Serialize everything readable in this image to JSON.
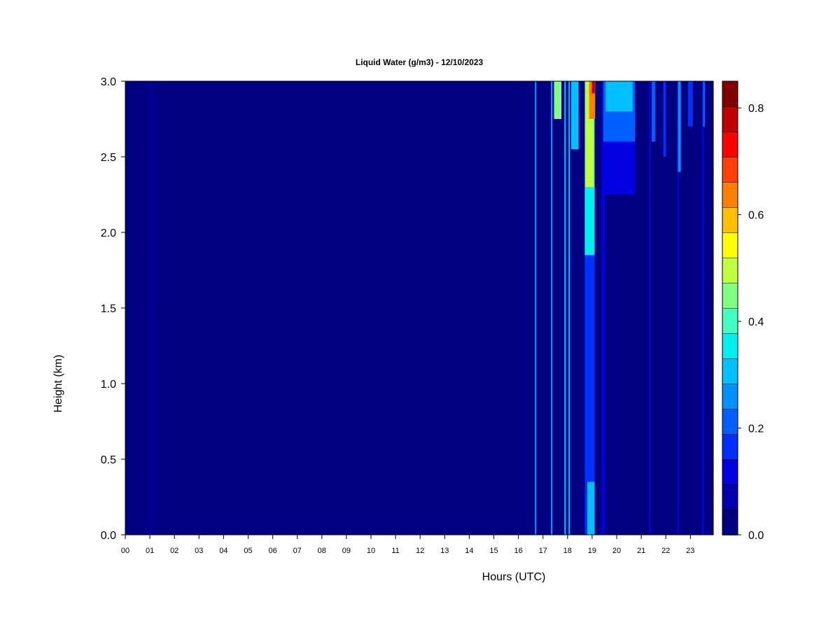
{
  "chart_data": {
    "type": "heatmap",
    "title": "Liquid Water (g/m3) - 12/10/2023",
    "xlabel": "Hours (UTC)",
    "ylabel": "Height (km)",
    "x_ticks": [
      "00",
      "01",
      "02",
      "03",
      "04",
      "05",
      "06",
      "07",
      "08",
      "09",
      "10",
      "11",
      "12",
      "13",
      "14",
      "15",
      "16",
      "17",
      "18",
      "19",
      "20",
      "21",
      "22",
      "23"
    ],
    "y_ticks": [
      "0.0",
      "0.5",
      "1.0",
      "1.5",
      "2.0",
      "2.5",
      "3.0"
    ],
    "xlim": [
      0,
      23.9
    ],
    "ylim": [
      0,
      3.0
    ],
    "colorbar": {
      "range": [
        0,
        0.85
      ],
      "ticks": [
        "0.0",
        "0.2",
        "0.4",
        "0.6",
        "0.8"
      ],
      "tick_values": [
        0.0,
        0.2,
        0.4,
        0.6,
        0.8
      ],
      "levels": 17,
      "colors": [
        "#000080",
        "#0000b0",
        "#0000e0",
        "#0030ff",
        "#0060ff",
        "#0090ff",
        "#00c0ff",
        "#00f0f0",
        "#40ffc0",
        "#80ff80",
        "#c0ff40",
        "#ffff00",
        "#ffc000",
        "#ff8000",
        "#ff4000",
        "#ff0000",
        "#c00000",
        "#800000"
      ]
    },
    "grid": false,
    "features": [
      {
        "hour": 1.0,
        "width": 0.06,
        "ymin": 0.0,
        "ymax": 3.0,
        "value": 0.08
      },
      {
        "hour": 16.7,
        "width": 0.06,
        "ymin": 0.0,
        "ymax": 3.0,
        "value": 0.26
      },
      {
        "hour": 17.35,
        "width": 0.06,
        "ymin": 0.0,
        "ymax": 3.0,
        "value": 0.26
      },
      {
        "hour": 17.9,
        "width": 0.06,
        "ymin": 0.0,
        "ymax": 3.0,
        "value": 0.3
      },
      {
        "hour": 18.07,
        "width": 0.06,
        "ymin": 0.0,
        "ymax": 3.0,
        "value": 0.3
      },
      {
        "hour": 17.6,
        "width": 0.3,
        "ymin": 2.75,
        "ymax": 3.0,
        "value": 0.45
      },
      {
        "hour": 18.3,
        "width": 0.3,
        "ymin": 2.55,
        "ymax": 3.0,
        "value": 0.3
      },
      {
        "hour": 18.9,
        "width": 0.4,
        "ymin": 0.0,
        "ymax": 3.0,
        "value": 0.15
      },
      {
        "hour": 18.9,
        "width": 0.4,
        "ymin": 1.85,
        "ymax": 3.0,
        "value": 0.35
      },
      {
        "hour": 18.9,
        "width": 0.35,
        "ymin": 2.3,
        "ymax": 3.0,
        "value": 0.5
      },
      {
        "hour": 19.0,
        "width": 0.25,
        "ymin": 2.75,
        "ymax": 3.0,
        "value": 0.65
      },
      {
        "hour": 19.05,
        "width": 0.12,
        "ymin": 2.92,
        "ymax": 3.0,
        "value": 0.8
      },
      {
        "hour": 18.95,
        "width": 0.3,
        "ymin": 0.0,
        "ymax": 0.35,
        "value": 0.3
      },
      {
        "hour": 19.45,
        "width": 0.15,
        "ymin": 0.0,
        "ymax": 3.0,
        "value": 0.12
      },
      {
        "hour": 20.1,
        "width": 1.3,
        "ymin": 2.25,
        "ymax": 3.0,
        "value": 0.12
      },
      {
        "hour": 20.1,
        "width": 1.3,
        "ymin": 2.6,
        "ymax": 3.0,
        "value": 0.2
      },
      {
        "hour": 20.1,
        "width": 1.1,
        "ymin": 2.8,
        "ymax": 3.0,
        "value": 0.32
      },
      {
        "hour": 21.35,
        "width": 0.08,
        "ymin": 0.0,
        "ymax": 3.0,
        "value": 0.1
      },
      {
        "hour": 21.5,
        "width": 0.15,
        "ymin": 2.6,
        "ymax": 3.0,
        "value": 0.22
      },
      {
        "hour": 21.95,
        "width": 0.1,
        "ymin": 2.5,
        "ymax": 3.0,
        "value": 0.15
      },
      {
        "hour": 22.5,
        "width": 0.07,
        "ymin": 0.0,
        "ymax": 3.0,
        "value": 0.1
      },
      {
        "hour": 22.55,
        "width": 0.12,
        "ymin": 2.4,
        "ymax": 3.0,
        "value": 0.25
      },
      {
        "hour": 23.0,
        "width": 0.2,
        "ymin": 2.7,
        "ymax": 3.0,
        "value": 0.15
      },
      {
        "hour": 23.5,
        "width": 0.07,
        "ymin": 0.0,
        "ymax": 3.0,
        "value": 0.1
      },
      {
        "hour": 23.55,
        "width": 0.08,
        "ymin": 2.7,
        "ymax": 3.0,
        "value": 0.22
      }
    ]
  }
}
